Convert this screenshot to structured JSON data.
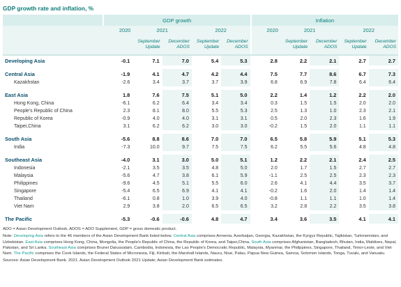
{
  "title": "GDP growth rate and inflation, %",
  "headers": {
    "gdp": "GDP growth",
    "inflation": "Inflation",
    "years": [
      "2020",
      "2021",
      "2022"
    ],
    "sub": {
      "september": "September Update",
      "september_l1": "September",
      "september_l2": "Update",
      "december": "December ADOS",
      "december_l1": "December",
      "december_l2": "ADOS"
    }
  },
  "rows": [
    {
      "type": "region",
      "label": "Developing Asia",
      "gdp": [
        "-0.1",
        "7.1",
        "7.0",
        "5.4",
        "5.3"
      ],
      "inf": [
        "2.8",
        "2.2",
        "2.1",
        "2.7",
        "2.7"
      ]
    },
    {
      "type": "gap"
    },
    {
      "type": "region",
      "label": "Central Asia",
      "gdp": [
        "-1.9",
        "4.1",
        "4.7",
        "4.2",
        "4.4"
      ],
      "inf": [
        "7.5",
        "7.7",
        "8.6",
        "6.7",
        "7.3"
      ]
    },
    {
      "type": "sub",
      "label": "Kazakhstan",
      "gdp": [
        "-2.6",
        "3.4",
        "3.7",
        "3.7",
        "3.9"
      ],
      "inf": [
        "6.8",
        "6.9",
        "7.8",
        "6.4",
        "6.4"
      ]
    },
    {
      "type": "gap"
    },
    {
      "type": "region",
      "label": "East Asia",
      "gdp": [
        "1.8",
        "7.6",
        "7.5",
        "5.1",
        "5.0"
      ],
      "inf": [
        "2.2",
        "1.4",
        "1.2",
        "2.2",
        "2.0"
      ]
    },
    {
      "type": "sub",
      "label": "Hong Kong, China",
      "gdp": [
        "-6.1",
        "6.2",
        "6.4",
        "3.4",
        "3.4"
      ],
      "inf": [
        "0.3",
        "1.5",
        "1.5",
        "2.0",
        "2.0"
      ]
    },
    {
      "type": "sub",
      "label": "People's Republic of China",
      "gdp": [
        "2.3",
        "8.1",
        "8.0",
        "5.5",
        "5.3"
      ],
      "inf": [
        "2.5",
        "1.3",
        "1.0",
        "2.3",
        "2.1"
      ]
    },
    {
      "type": "sub",
      "label": "Republic of Korea",
      "gdp": [
        "-0.9",
        "4.0",
        "4.0",
        "3.1",
        "3.1"
      ],
      "inf": [
        "0.5",
        "2.0",
        "2.3",
        "1.6",
        "1.9"
      ]
    },
    {
      "type": "sub",
      "label": "Taipei,China",
      "gdp": [
        "3.1",
        "6.2",
        "6.2",
        "3.0",
        "3.0"
      ],
      "inf": [
        "-0.2",
        "1.5",
        "2.0",
        "1.1",
        "1.1"
      ]
    },
    {
      "type": "gap"
    },
    {
      "type": "region",
      "label": "South Asia",
      "gdp": [
        "-5.6",
        "8.8",
        "8.6",
        "7.0",
        "7.0"
      ],
      "inf": [
        "6.5",
        "5.8",
        "5.9",
        "5.1",
        "5.3"
      ]
    },
    {
      "type": "sub",
      "label": "India",
      "gdp": [
        "-7.3",
        "10.0",
        "9.7",
        "7.5",
        "7.5"
      ],
      "inf": [
        "6.2",
        "5.5",
        "5.6",
        "4.8",
        "4.8"
      ]
    },
    {
      "type": "gap"
    },
    {
      "type": "region",
      "label": "Southeast Asia",
      "gdp": [
        "-4.0",
        "3.1",
        "3.0",
        "5.0",
        "5.1"
      ],
      "inf": [
        "1.2",
        "2.2",
        "2.1",
        "2.4",
        "2.5"
      ]
    },
    {
      "type": "sub",
      "label": "Indonesia",
      "gdp": [
        "-2.1",
        "3.5",
        "3.5",
        "4.8",
        "5.0"
      ],
      "inf": [
        "2.0",
        "1.7",
        "1.5",
        "2.7",
        "2.7"
      ]
    },
    {
      "type": "sub",
      "label": "Malaysia",
      "gdp": [
        "-5.6",
        "4.7",
        "3.8",
        "6.1",
        "5.9"
      ],
      "inf": [
        "-1.1",
        "2.5",
        "2.5",
        "2.3",
        "2.3"
      ]
    },
    {
      "type": "sub",
      "label": "Philippines",
      "gdp": [
        "-9.6",
        "4.5",
        "5.1",
        "5.5",
        "6.0"
      ],
      "inf": [
        "2.6",
        "4.1",
        "4.4",
        "3.5",
        "3.7"
      ]
    },
    {
      "type": "sub",
      "label": "Singapore",
      "gdp": [
        "-5.4",
        "6.5",
        "6.9",
        "4.1",
        "4.1"
      ],
      "inf": [
        "-0.2",
        "1.6",
        "2.0",
        "1.4",
        "1.4"
      ]
    },
    {
      "type": "sub",
      "label": "Thailand",
      "gdp": [
        "-6.1",
        "0.8",
        "1.0",
        "3.9",
        "4.0"
      ],
      "inf": [
        "-0.8",
        "1.1",
        "1.1",
        "1.0",
        "1.4"
      ]
    },
    {
      "type": "sub",
      "label": "Viet Nam",
      "gdp": [
        "2.9",
        "3.8",
        "2.0",
        "6.5",
        "6.5"
      ],
      "inf": [
        "3.2",
        "2.8",
        "2.2",
        "3.5",
        "3.8"
      ]
    },
    {
      "type": "gap"
    },
    {
      "type": "region",
      "label": "The Pacific",
      "gdp": [
        "-5.3",
        "-0.6",
        "-0.6",
        "4.8",
        "4.7"
      ],
      "inf": [
        "3.4",
        "3.6",
        "3.5",
        "4.1",
        "4.1"
      ]
    }
  ],
  "notes": {
    "abbrev": "ADO = Asian Development Outlook, ADOS = ADO Supplement, GDP = gross domestic product.",
    "note_prefix": "Note: ",
    "note_dev_asia": "Developing Asia",
    "note_t1": " refers to the 46 members of the Asian Development Bank listed below. ",
    "note_central_asia": "Central Asia",
    "note_t2": " comprises Armenia, Azerbaijan, Georgia, Kazakhstan, the Kyrgyz Republic, Tajikistan, Turkmenistan, and Uzbekistan. ",
    "note_east_asia": "East Asia",
    "note_t3": " comprises Hong Kong, China, Mongolia, the People's Republic of China, the Republic of Korea, and Taipei,China. ",
    "note_south_asia": "South Asia",
    "note_t4": " comprises Afghanistan, Bangladesh, Bhutan, India, Maldives, Nepal, Pakistan, and Sri Lanka. ",
    "note_southeast_asia": "Southeast Asia",
    "note_t5": " comprises Brunei Darussalam, Cambodia, Indonesia, the Lao People's Democratic Republic, Malaysia, Myanmar, the Philippines, Singapore, Thailand, Timor-Leste, and Viet Nam. ",
    "note_pacific": "The Pacific",
    "note_t6": " comprises the Cook Islands, the Federal States of Micronesia, Fiji, Kiribati, the Marshall Islands, Nauru, Niue, Palau, Papua New Guinea, Samoa, Solomon Islands, Tonga, Tuvalu, and Vanuatu.",
    "source": "Sources: Asian Development Bank. 2021. Asian Development Outlook 2021 Update; Asian Development Bank estimates."
  },
  "colors": {
    "accent": "#0b7d79",
    "header_bg": "#d8eeec",
    "shade_bg": "#eaf5f4",
    "region_label": "#0b4f6c",
    "highlight": "#0b9a93"
  }
}
